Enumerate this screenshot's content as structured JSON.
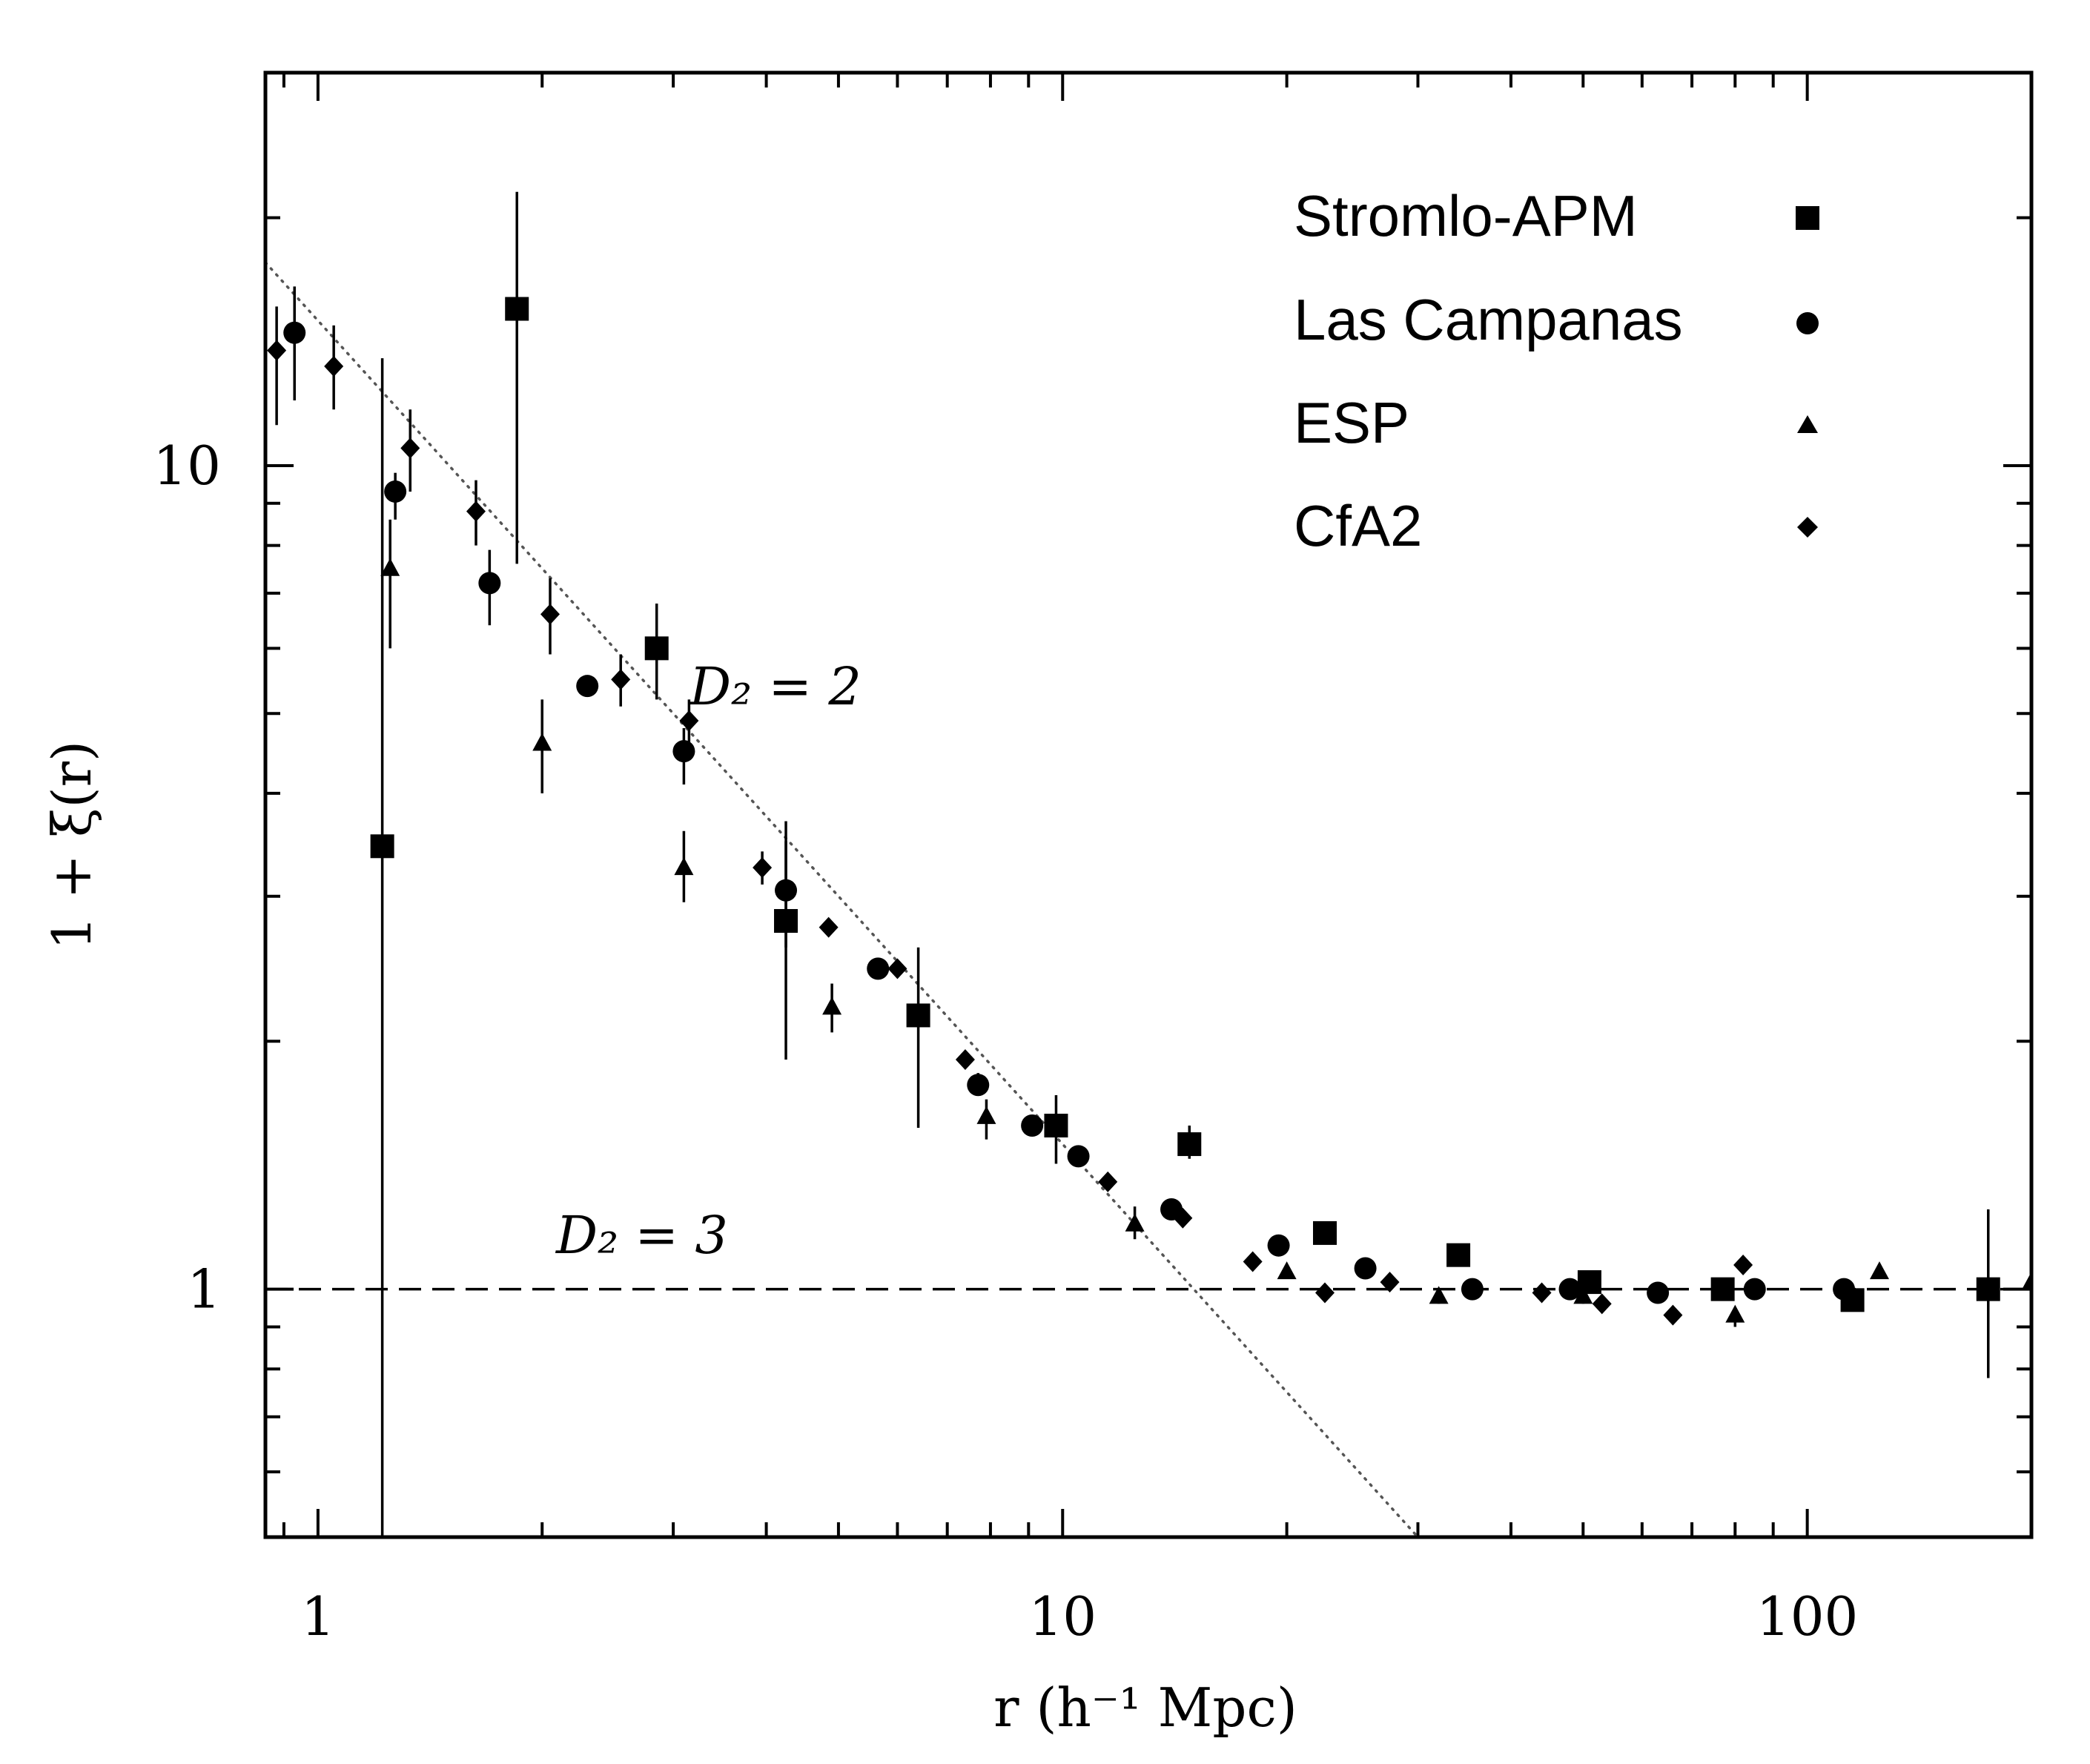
{
  "chart_data": {
    "type": "scatter",
    "xscale": "log",
    "yscale": "log",
    "xlim": [
      0.85,
      200
    ],
    "ylim": [
      0.5,
      30
    ],
    "xlabel": "r (h⁻¹ Mpc)",
    "ylabel": "1 + ξ(r)",
    "xticks": [
      {
        "value": 1,
        "label": "1"
      },
      {
        "value": 10,
        "label": "10"
      },
      {
        "value": 100,
        "label": "100"
      }
    ],
    "yticks": [
      {
        "value": 1,
        "label": "1"
      },
      {
        "value": 10,
        "label": "10"
      }
    ],
    "legend_position": "top-right",
    "annotations": [
      {
        "text": "D₂ = 2",
        "x": 2.9,
        "y": 5.3
      },
      {
        "text": "D₂ = 3",
        "x": 1.9,
        "y": 1.15
      }
    ],
    "reference_lines": [
      {
        "name": "D2=3",
        "style": "dashed",
        "y": 1
      },
      {
        "name": "D2=2",
        "style": "dotted",
        "slope": -1,
        "x0": 1,
        "y0": 15
      }
    ],
    "series": [
      {
        "name": "Stromlo-APM",
        "marker": "square",
        "points": [
          {
            "x": 1.22,
            "y": 3.45,
            "lo": 0.2,
            "hi": 13.5
          },
          {
            "x": 1.85,
            "y": 15.5,
            "lo": 7.6,
            "hi": 21.5
          },
          {
            "x": 2.85,
            "y": 6.0,
            "lo": 5.2,
            "hi": 6.8
          },
          {
            "x": 4.25,
            "y": 2.8,
            "lo": 1.9,
            "hi": 3.5
          },
          {
            "x": 6.4,
            "y": 2.15,
            "lo": 1.57,
            "hi": 2.6
          },
          {
            "x": 9.8,
            "y": 1.58,
            "lo": 1.42,
            "hi": 1.72
          },
          {
            "x": 14.8,
            "y": 1.5,
            "lo": 1.44,
            "hi": 1.58
          },
          {
            "x": 22.5,
            "y": 1.17,
            "lo": 1.17,
            "hi": 1.17
          },
          {
            "x": 34,
            "y": 1.1,
            "lo": 1.1,
            "hi": 1.1
          },
          {
            "x": 51,
            "y": 1.02,
            "lo": 1.02,
            "hi": 1.02
          },
          {
            "x": 77,
            "y": 1.0,
            "lo": 1.0,
            "hi": 1.0
          },
          {
            "x": 115,
            "y": 0.97,
            "lo": 0.97,
            "hi": 0.97
          },
          {
            "x": 175,
            "y": 1.0,
            "lo": 0.78,
            "hi": 1.25
          }
        ]
      },
      {
        "name": "Las Campanas",
        "marker": "circle",
        "points": [
          {
            "x": 0.93,
            "y": 14.5,
            "lo": 12.0,
            "hi": 16.5
          },
          {
            "x": 1.27,
            "y": 9.3,
            "lo": 8.6,
            "hi": 9.8
          },
          {
            "x": 1.7,
            "y": 7.2,
            "lo": 6.4,
            "hi": 7.9
          },
          {
            "x": 2.3,
            "y": 5.4,
            "lo": 5.4,
            "hi": 5.4
          },
          {
            "x": 3.1,
            "y": 4.5,
            "lo": 4.1,
            "hi": 4.8
          },
          {
            "x": 4.25,
            "y": 3.05,
            "lo": 2.6,
            "hi": 3.7
          },
          {
            "x": 5.65,
            "y": 2.45,
            "lo": 2.45,
            "hi": 2.45
          },
          {
            "x": 7.7,
            "y": 1.77,
            "lo": 1.72,
            "hi": 1.83
          },
          {
            "x": 9.1,
            "y": 1.58,
            "lo": 1.58,
            "hi": 1.58
          },
          {
            "x": 10.5,
            "y": 1.45,
            "lo": 1.45,
            "hi": 1.45
          },
          {
            "x": 14.0,
            "y": 1.25,
            "lo": 1.25,
            "hi": 1.25
          },
          {
            "x": 19.5,
            "y": 1.13,
            "lo": 1.13,
            "hi": 1.13
          },
          {
            "x": 25.5,
            "y": 1.06,
            "lo": 1.06,
            "hi": 1.06
          },
          {
            "x": 35.5,
            "y": 1.0,
            "lo": 1.0,
            "hi": 1.0
          },
          {
            "x": 48,
            "y": 1.0,
            "lo": 1.0,
            "hi": 1.0
          },
          {
            "x": 63,
            "y": 0.99,
            "lo": 0.99,
            "hi": 0.99
          },
          {
            "x": 85,
            "y": 1.0,
            "lo": 1.0,
            "hi": 1.0
          },
          {
            "x": 112,
            "y": 1.0,
            "lo": 1.0,
            "hi": 1.0
          }
        ]
      },
      {
        "name": "ESP",
        "marker": "triangle",
        "points": [
          {
            "x": 1.25,
            "y": 7.5,
            "lo": 6.0,
            "hi": 8.6
          },
          {
            "x": 2.0,
            "y": 4.6,
            "lo": 4.0,
            "hi": 5.2
          },
          {
            "x": 3.1,
            "y": 3.25,
            "lo": 2.95,
            "hi": 3.6
          },
          {
            "x": 4.9,
            "y": 2.2,
            "lo": 2.05,
            "hi": 2.35
          },
          {
            "x": 7.9,
            "y": 1.62,
            "lo": 1.52,
            "hi": 1.7
          },
          {
            "x": 12.5,
            "y": 1.2,
            "lo": 1.15,
            "hi": 1.26
          },
          {
            "x": 20,
            "y": 1.05,
            "lo": 1.05,
            "hi": 1.05
          },
          {
            "x": 32,
            "y": 0.98,
            "lo": 0.96,
            "hi": 1.0
          },
          {
            "x": 50,
            "y": 0.98,
            "lo": 0.96,
            "hi": 1.0
          },
          {
            "x": 80,
            "y": 0.93,
            "lo": 0.9,
            "hi": 0.95
          },
          {
            "x": 125,
            "y": 1.05,
            "lo": 1.05,
            "hi": 1.05
          },
          {
            "x": 200,
            "y": 1.02,
            "lo": 1.02,
            "hi": 1.02
          }
        ]
      },
      {
        "name": "CfA2",
        "marker": "diamond",
        "points": [
          {
            "x": 0.88,
            "y": 13.8,
            "lo": 11.2,
            "hi": 15.6
          },
          {
            "x": 1.05,
            "y": 13.2,
            "lo": 11.7,
            "hi": 14.8
          },
          {
            "x": 1.33,
            "y": 10.5,
            "lo": 9.3,
            "hi": 11.7
          },
          {
            "x": 1.63,
            "y": 8.8,
            "lo": 8.0,
            "hi": 9.6
          },
          {
            "x": 2.05,
            "y": 6.6,
            "lo": 5.9,
            "hi": 7.3
          },
          {
            "x": 2.55,
            "y": 5.5,
            "lo": 5.1,
            "hi": 5.9
          },
          {
            "x": 3.15,
            "y": 4.9,
            "lo": 4.6,
            "hi": 5.2
          },
          {
            "x": 3.95,
            "y": 3.25,
            "lo": 3.1,
            "hi": 3.4
          },
          {
            "x": 4.85,
            "y": 2.75,
            "lo": 2.75,
            "hi": 2.75
          },
          {
            "x": 6.0,
            "y": 2.45,
            "lo": 2.45,
            "hi": 2.45
          },
          {
            "x": 7.4,
            "y": 1.9,
            "lo": 1.9,
            "hi": 1.9
          },
          {
            "x": 11.5,
            "y": 1.35,
            "lo": 1.35,
            "hi": 1.35
          },
          {
            "x": 14.5,
            "y": 1.22,
            "lo": 1.22,
            "hi": 1.22
          },
          {
            "x": 18,
            "y": 1.08,
            "lo": 1.08,
            "hi": 1.08
          },
          {
            "x": 22.5,
            "y": 0.99,
            "lo": 0.99,
            "hi": 0.99
          },
          {
            "x": 27.5,
            "y": 1.02,
            "lo": 1.02,
            "hi": 1.02
          },
          {
            "x": 44,
            "y": 0.99,
            "lo": 0.99,
            "hi": 0.99
          },
          {
            "x": 53,
            "y": 0.96,
            "lo": 0.96,
            "hi": 0.96
          },
          {
            "x": 66,
            "y": 0.93,
            "lo": 0.93,
            "hi": 0.93
          },
          {
            "x": 82,
            "y": 1.07,
            "lo": 1.07,
            "hi": 1.07
          }
        ]
      }
    ]
  }
}
